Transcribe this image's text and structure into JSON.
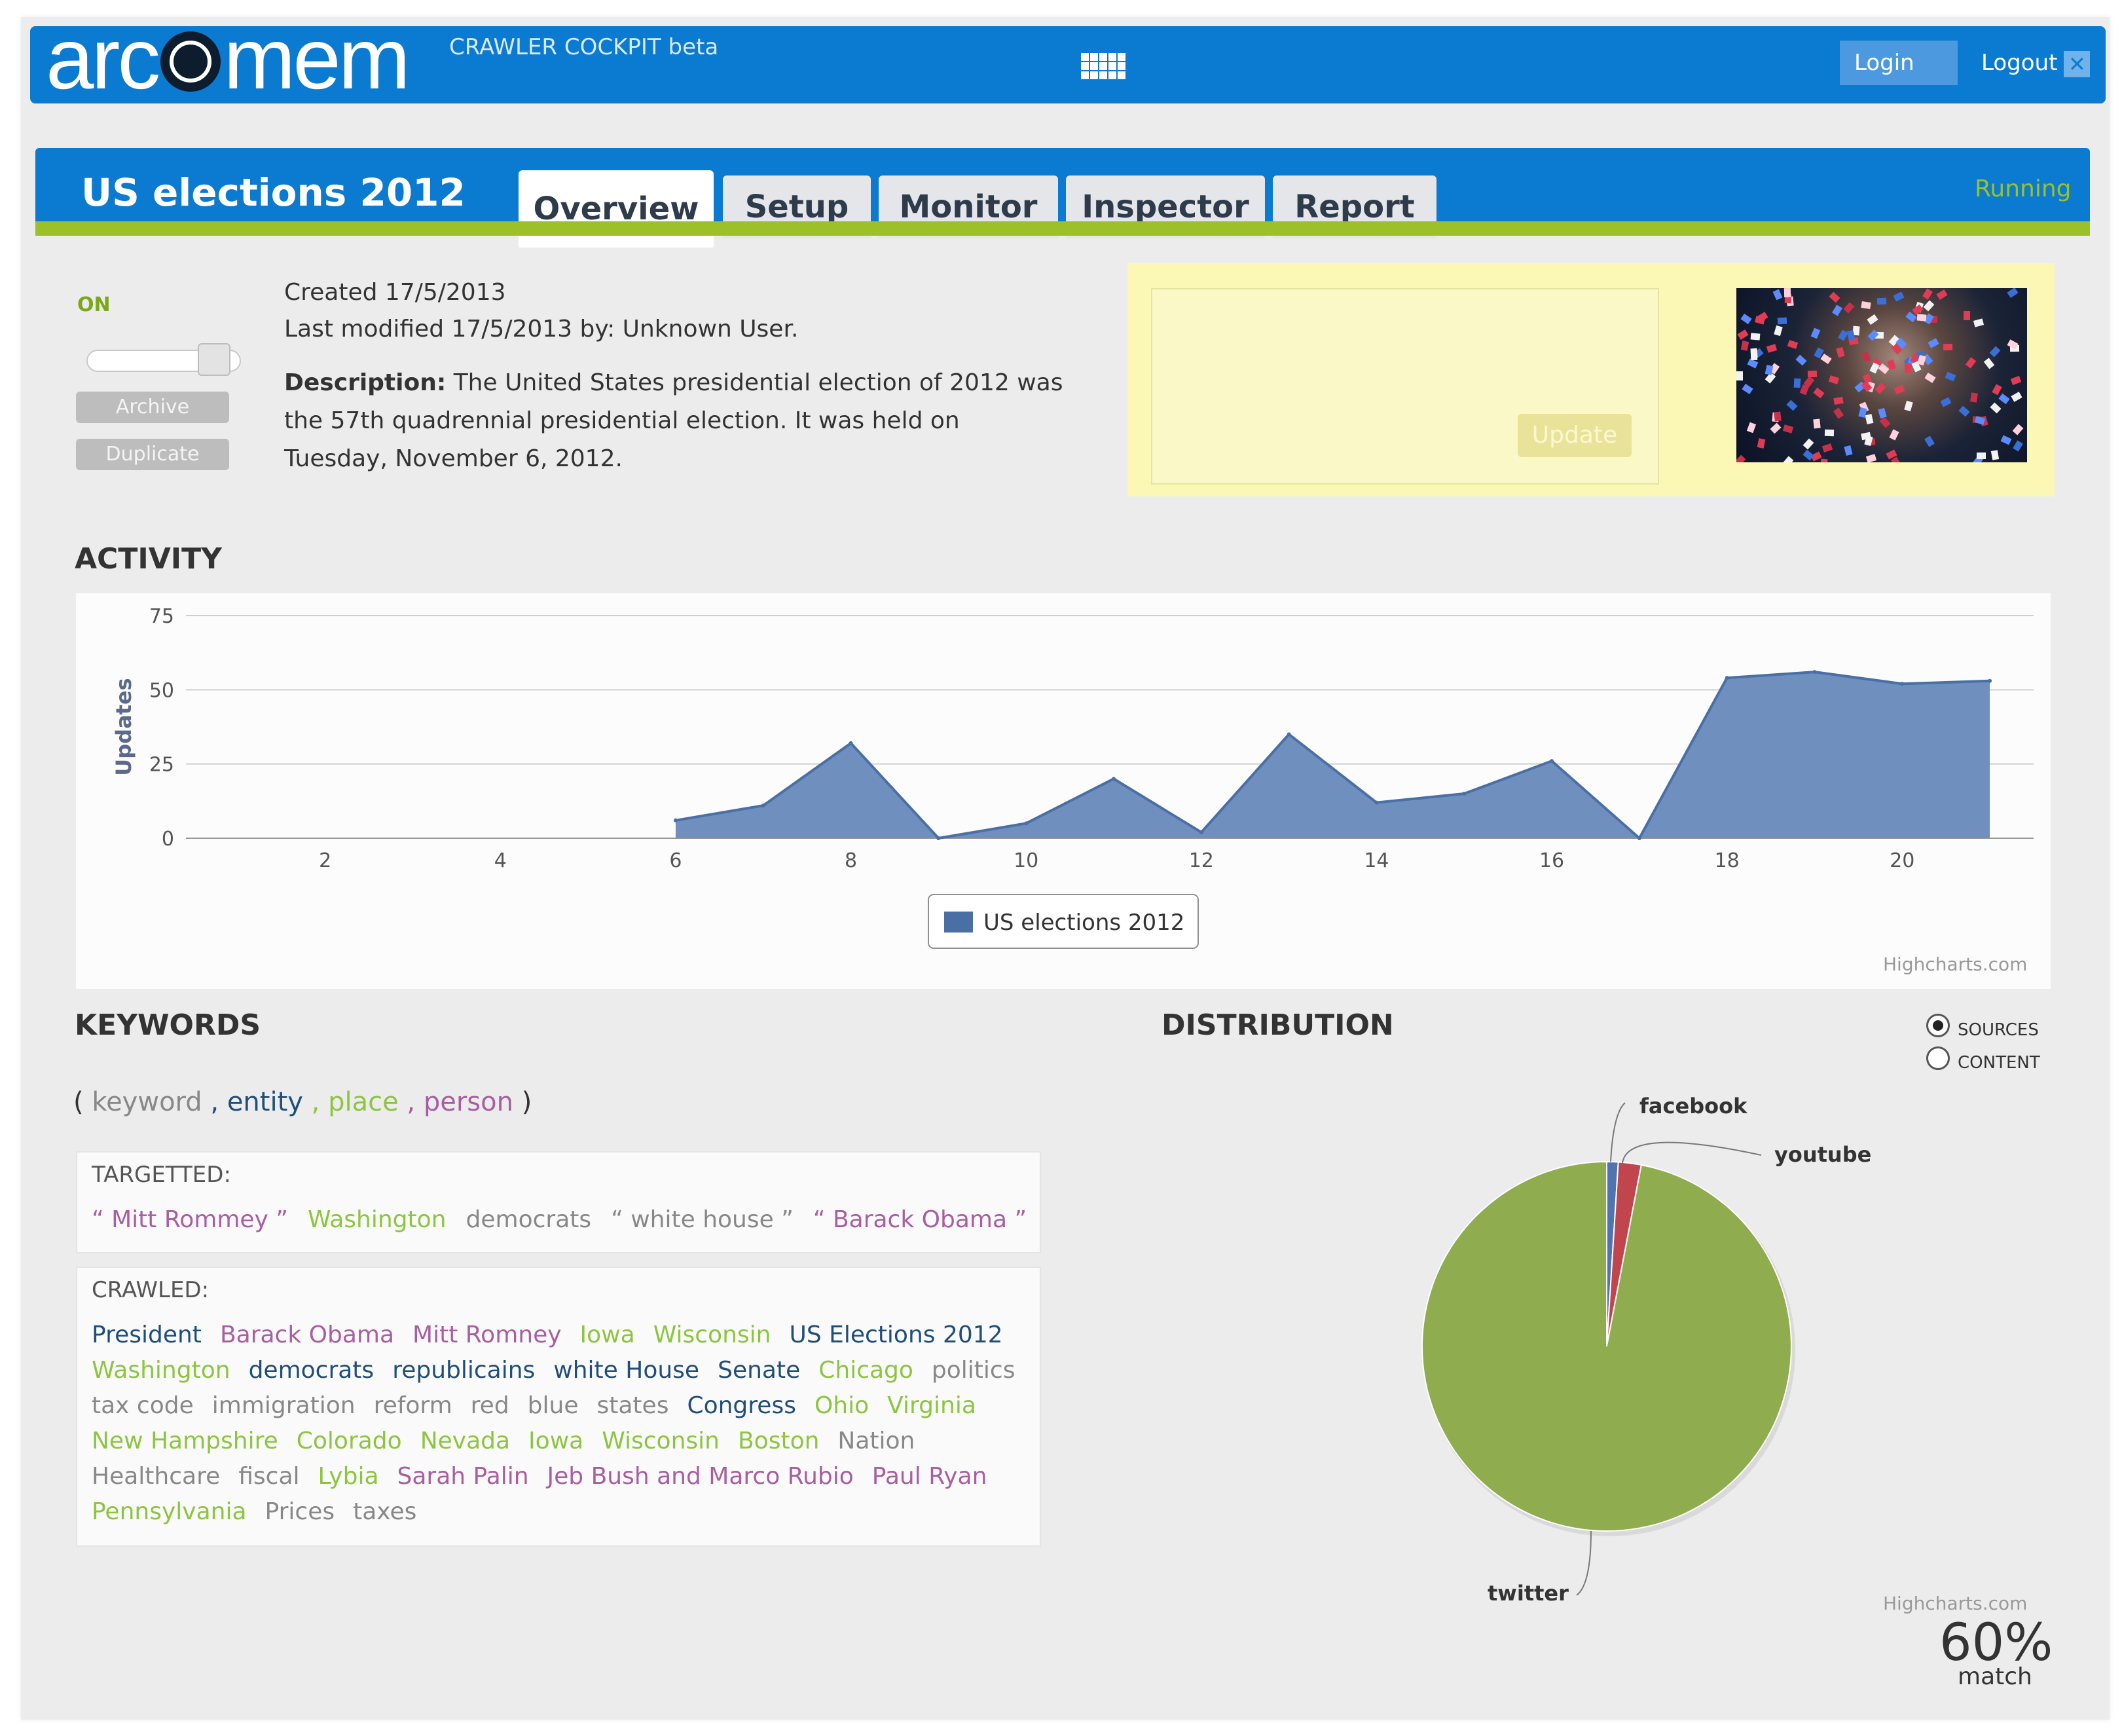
{
  "header": {
    "logo_text": "arcomem",
    "subtitle": "CRAWLER COCKPIT beta",
    "apps_icon": "grid-icon",
    "login_label": "Login",
    "logout_label": "Logout",
    "logout_icon": "close-icon",
    "brand_color": "#0a7bd0"
  },
  "project": {
    "title": "US elections 2012",
    "tabs": [
      {
        "label": "Overview",
        "active": true
      },
      {
        "label": "Setup",
        "active": false
      },
      {
        "label": "Monitor",
        "active": false
      },
      {
        "label": "Inspector",
        "active": false
      },
      {
        "label": "Report",
        "active": false
      }
    ],
    "status": "Running",
    "status_color": "#9cc128",
    "accent_color": "#9cc128"
  },
  "controls": {
    "toggle_state": "ON",
    "archive_label": "Archive",
    "duplicate_label": "Duplicate"
  },
  "info": {
    "created": "Created 17/5/2013",
    "modified": "Last modified 17/5/2013 by: Unknown User.",
    "description_label": "Description:",
    "description_text": " The United States presidential election of 2012 was the 57th quadrennial presidential election. It was held on Tuesday, November 6, 2012."
  },
  "note": {
    "value": "",
    "update_label": "Update"
  },
  "activity": {
    "section_title": "ACTIVITY",
    "credit": "Highcharts.com"
  },
  "chart_data": [
    {
      "type": "area",
      "title": "",
      "xlabel": "",
      "ylabel": "Updates",
      "x": [
        6,
        7,
        8,
        9,
        10,
        11,
        12,
        13,
        14,
        15,
        16,
        17,
        18,
        19,
        20,
        21
      ],
      "series": [
        {
          "name": "US elections 2012",
          "values": [
            6,
            11,
            32,
            0,
            5,
            20,
            2,
            35,
            12,
            15,
            26,
            0,
            54,
            56,
            52,
            53
          ]
        }
      ],
      "xlim": [
        0.5,
        21.5
      ],
      "ylim": [
        0,
        75
      ],
      "xticks": [
        2,
        4,
        6,
        8,
        10,
        12,
        14,
        16,
        18,
        20
      ],
      "yticks": [
        0,
        25,
        50,
        75
      ],
      "grid": true,
      "legend": "bottom-center",
      "color": "#6f8fbf"
    },
    {
      "type": "pie",
      "title": "",
      "categories": [
        "facebook",
        "youtube",
        "twitter"
      ],
      "values": [
        1,
        2,
        97
      ],
      "colors": [
        "#4f74b0",
        "#c0454c",
        "#8fad4f"
      ]
    }
  ],
  "keywords": {
    "section_title": "KEYWORDS",
    "legend": {
      "open": "(",
      "keyword": "keyword",
      "entity": ", entity",
      "place": ", place",
      "person": ", person",
      "close": ")"
    },
    "targetted_label": "TARGETTED:",
    "targetted": [
      {
        "text": "“ Mitt Rommey ”",
        "type": "person"
      },
      {
        "text": "Washington",
        "type": "place"
      },
      {
        "text": "democrats",
        "type": "keyword"
      },
      {
        "text": "“ white house ”",
        "type": "keyword"
      },
      {
        "text": "“ Barack Obama ”",
        "type": "person"
      }
    ],
    "crawled_label": "CRAWLED:",
    "crawled_rows": [
      [
        {
          "text": "President",
          "type": "entity"
        },
        {
          "text": "Barack Obama",
          "type": "person"
        },
        {
          "text": "Mitt Romney",
          "type": "person"
        },
        {
          "text": "Iowa",
          "type": "place"
        },
        {
          "text": "Wisconsin",
          "type": "place"
        },
        {
          "text": "US Elections 2012",
          "type": "entity"
        }
      ],
      [
        {
          "text": "Washington",
          "type": "place"
        },
        {
          "text": "democrats",
          "type": "entity"
        },
        {
          "text": "republicains",
          "type": "entity"
        },
        {
          "text": "white House",
          "type": "entity"
        },
        {
          "text": "Senate",
          "type": "entity"
        },
        {
          "text": "Chicago",
          "type": "place"
        },
        {
          "text": "politics",
          "type": "keyword"
        }
      ],
      [
        {
          "text": "tax code",
          "type": "keyword"
        },
        {
          "text": "immigration",
          "type": "keyword"
        },
        {
          "text": "reform",
          "type": "keyword"
        },
        {
          "text": "red",
          "type": "keyword"
        },
        {
          "text": "blue",
          "type": "keyword"
        },
        {
          "text": "states",
          "type": "keyword"
        },
        {
          "text": "Congress",
          "type": "entity"
        },
        {
          "text": "Ohio",
          "type": "place"
        },
        {
          "text": "Virginia",
          "type": "place"
        }
      ],
      [
        {
          "text": "New Hampshire",
          "type": "place"
        },
        {
          "text": "Colorado",
          "type": "place"
        },
        {
          "text": "Nevada",
          "type": "place"
        },
        {
          "text": "Iowa",
          "type": "place"
        },
        {
          "text": "Wisconsin",
          "type": "place"
        },
        {
          "text": "Boston",
          "type": "place"
        },
        {
          "text": "Nation",
          "type": "keyword"
        }
      ],
      [
        {
          "text": "Healthcare",
          "type": "keyword"
        },
        {
          "text": "fiscal",
          "type": "keyword"
        },
        {
          "text": "Lybia",
          "type": "place"
        },
        {
          "text": "Sarah Palin",
          "type": "person"
        },
        {
          "text": "Jeb Bush and Marco Rubio",
          "type": "person"
        },
        {
          "text": "Paul Ryan",
          "type": "person"
        }
      ],
      [
        {
          "text": "Pennsylvania",
          "type": "place"
        },
        {
          "text": "Prices",
          "type": "keyword"
        },
        {
          "text": "taxes",
          "type": "keyword"
        }
      ]
    ],
    "colors": {
      "keyword": "#888888",
      "entity": "#1f4e7a",
      "place": "#8cc53f",
      "person": "#a85ea1"
    }
  },
  "distribution": {
    "section_title": "DISTRIBUTION",
    "options": [
      {
        "label": "SOURCES",
        "selected": true
      },
      {
        "label": "CONTENT",
        "selected": false
      }
    ],
    "credit": "Highcharts.com",
    "match_value": "60%",
    "match_label": "match"
  }
}
